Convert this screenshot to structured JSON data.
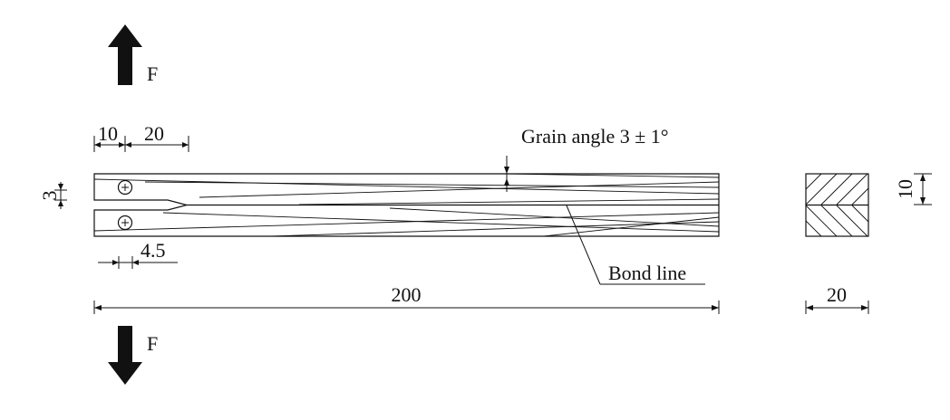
{
  "forces": {
    "top_label": "F",
    "bottom_label": "F"
  },
  "dimensions": {
    "d10_left": "10",
    "d20_top": "20",
    "d3": "3",
    "d4_5": "4.5",
    "d200": "200",
    "d20_section": "20",
    "d10_section": "10"
  },
  "annotations": {
    "grain_angle": "Grain angle 3 ± 1°",
    "bond_line": "Bond line"
  },
  "colors": {
    "ink": "#111111",
    "background": "#ffffff"
  }
}
